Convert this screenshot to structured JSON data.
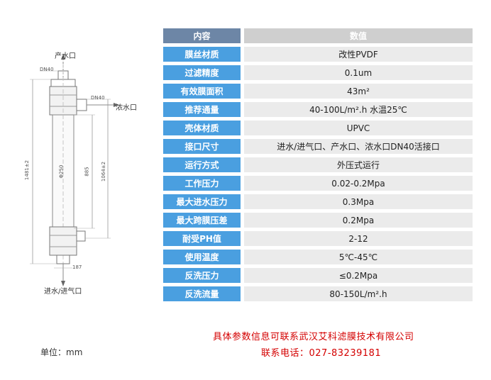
{
  "diagram": {
    "outlet_label": "产水口",
    "concentrate_label": "浓水口",
    "inlet_label": "进水/进气口",
    "dim_top_dn": "DN40",
    "dim_side_dn": "DN40",
    "dim_total_length": "1481±2",
    "dim_body_diameter": "Φ250",
    "dim_inner_length": "885",
    "dim_module_length": "1064±2",
    "dim_bottom": "187"
  },
  "table": {
    "header_key": "内容",
    "header_value": "数值",
    "rows": [
      {
        "key": "膜丝材质",
        "value": "改性PVDF"
      },
      {
        "key": "过滤精度",
        "value": "0.1um"
      },
      {
        "key": "有效膜面积",
        "value": "43m²"
      },
      {
        "key": "推荐通量",
        "value": "40-100L/m².h   水温25℃"
      },
      {
        "key": "壳体材质",
        "value": "UPVC"
      },
      {
        "key": "接口尺寸",
        "value": "进水/进气口、产水口、浓水口DN40活接口"
      },
      {
        "key": "运行方式",
        "value": "外压式运行"
      },
      {
        "key": "工作压力",
        "value": "0.02-0.2Mpa"
      },
      {
        "key": "最大进水压力",
        "value": "0.3Mpa"
      },
      {
        "key": "最大跨膜压差",
        "value": "0.2Mpa"
      },
      {
        "key": "耐受PH值",
        "value": "2-12"
      },
      {
        "key": "使用温度",
        "value": "5℃-45℃"
      },
      {
        "key": "反洗压力",
        "value": "≤0.2Mpa"
      },
      {
        "key": "反洗流量",
        "value": "80-150L/m².h"
      }
    ]
  },
  "footer": {
    "unit": "单位：mm",
    "contact_line1": "具体参数信息可联系武汉艾科滤膜技术有限公司",
    "contact_line2": "联系电话：027-83239181"
  },
  "colors": {
    "key_cell": "#4a9fe0",
    "header_key_cell": "#6d86a6",
    "value_cell": "#ebebeb",
    "header_value_cell": "#cfcfcf",
    "contact_text": "#d40000"
  }
}
